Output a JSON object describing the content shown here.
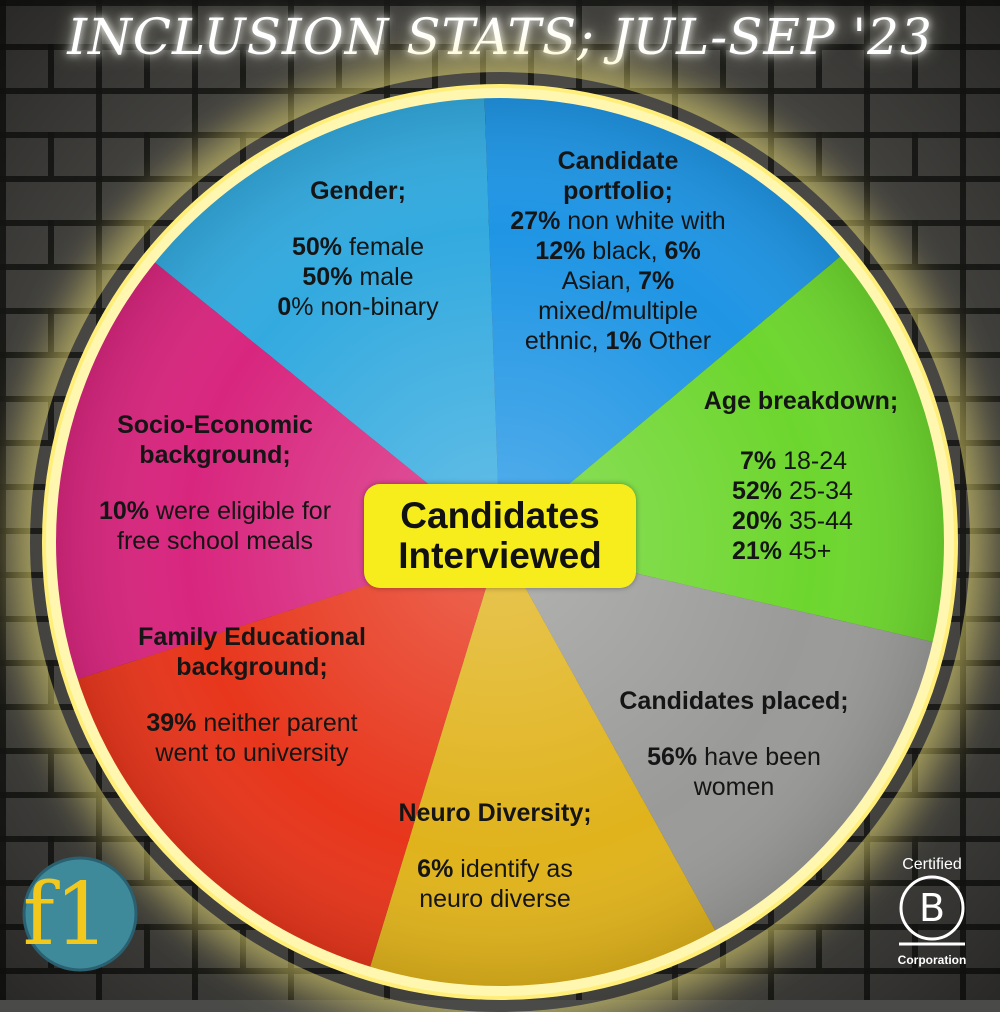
{
  "title": "INCLUSION STATS; JUL-SEP '23",
  "center_label": [
    "Candidates",
    "Interviewed"
  ],
  "colors": {
    "gender": "#33aadf",
    "portfolio": "#1f95e4",
    "age": "#6dd62e",
    "placed": "#9a9a98",
    "neuro": "#e0b31c",
    "family": "#e7361c",
    "socio": "#d8267e",
    "center": "#f7ed1c",
    "ring": "#ffef7a"
  },
  "segments": {
    "gender": {
      "heading": "Gender;",
      "lines": [
        {
          "strong": "50%",
          "text": " female"
        },
        {
          "strong": "50%",
          "text": " male"
        },
        {
          "strong": "0",
          "text": "% non-binary"
        }
      ]
    },
    "portfolio": {
      "heading_1": "Candidate",
      "heading_2": "portfolio;",
      "l1_strong": "27%",
      "l1_text": " non white with",
      "l2_strong_a": "12%",
      "l2_text": " black, ",
      "l2_strong_b": "6%",
      "l3_text": "Asian, ",
      "l3_strong": "7%",
      "l4_text": "mixed/multiple",
      "l5_text": "ethnic, ",
      "l5_strong": "1%",
      "l5_text_b": " Other"
    },
    "age": {
      "heading": "Age breakdown;",
      "lines": [
        {
          "strong": "7%",
          "text": " 18-24"
        },
        {
          "strong": "52%",
          "text": " 25-34"
        },
        {
          "strong": "20%",
          "text": " 35-44"
        },
        {
          "strong": "21%",
          "text": " 45+"
        }
      ]
    },
    "placed": {
      "heading": "Candidates placed;",
      "l1_strong": "56%",
      "l1_text": " have been",
      "l2_text": "women"
    },
    "neuro": {
      "heading": "Neuro Diversity;",
      "l1_strong": "6%",
      "l1_text": " identify as",
      "l2_text": "neuro diverse"
    },
    "family": {
      "heading_1": "Family Educational",
      "heading_2": "background;",
      "l1_strong": "39%",
      "l1_text": " neither parent",
      "l2_text": "went to university"
    },
    "socio": {
      "heading_1": "Socio-Economic",
      "heading_2": "background;",
      "l1_strong": "10%",
      "l1_text": " were eligible for",
      "l2_text": "free school meals"
    }
  },
  "bcorp": {
    "top": "Certified",
    "letter": "B",
    "bottom": "Corporation"
  },
  "logo_text": "f1"
}
